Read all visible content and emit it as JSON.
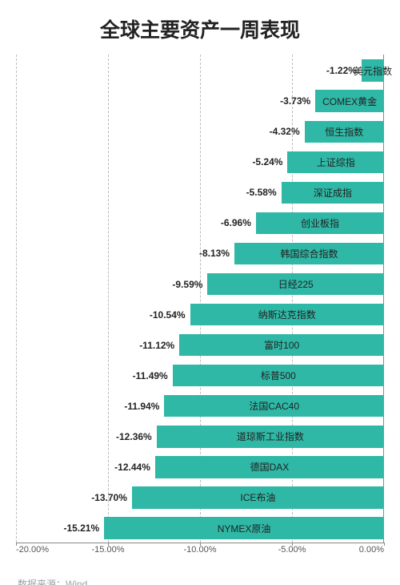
{
  "title": "全球主要资产一周表现",
  "title_fontsize": 25,
  "source_label": "数据来源：Wind",
  "chart": {
    "type": "bar-horizontal",
    "xlim": [
      -20.0,
      0.0
    ],
    "xtick_step": 5.0,
    "xtick_labels": [
      "-20.00%",
      "-15.00%",
      "-10.00%",
      "-5.00%",
      "0.00%"
    ],
    "bar_color": "#2fb8a6",
    "grid_color": "#bbbbbb",
    "axis_color": "#888888",
    "background_color": "#ffffff",
    "value_fontsize": 12,
    "value_fontweight": 700,
    "label_fontsize": 12,
    "bar_gap_ratio": 0.28,
    "items": [
      {
        "name": "美元指数",
        "value": -1.22,
        "display": "-1.22%"
      },
      {
        "name": "COMEX黄金",
        "value": -3.73,
        "display": "-3.73%"
      },
      {
        "name": "恒生指数",
        "value": -4.32,
        "display": "-4.32%"
      },
      {
        "name": "上证综指",
        "value": -5.24,
        "display": "-5.24%"
      },
      {
        "name": "深证成指",
        "value": -5.58,
        "display": "-5.58%"
      },
      {
        "name": "创业板指",
        "value": -6.96,
        "display": "-6.96%"
      },
      {
        "name": "韩国综合指数",
        "value": -8.13,
        "display": "-8.13%"
      },
      {
        "name": "日经225",
        "value": -9.59,
        "display": "-9.59%"
      },
      {
        "name": "纳斯达克指数",
        "value": -10.54,
        "display": "-10.54%"
      },
      {
        "name": "富时100",
        "value": -11.12,
        "display": "-11.12%"
      },
      {
        "name": "标普500",
        "value": -11.49,
        "display": "-11.49%"
      },
      {
        "name": "法国CAC40",
        "value": -11.94,
        "display": "-11.94%"
      },
      {
        "name": "道琼斯工业指数",
        "value": -12.36,
        "display": "-12.36%"
      },
      {
        "name": "德国DAX",
        "value": -12.44,
        "display": "-12.44%"
      },
      {
        "name": "ICE布油",
        "value": -13.7,
        "display": "-13.70%"
      },
      {
        "name": "NYMEX原油",
        "value": -15.21,
        "display": "-15.21%"
      }
    ]
  }
}
